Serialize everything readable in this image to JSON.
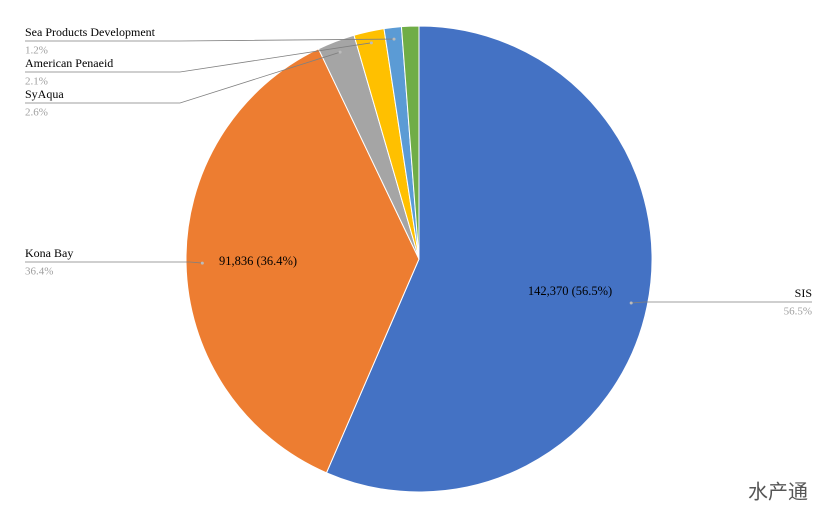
{
  "chart_data": {
    "type": "pie",
    "categories": [
      "SIS",
      "Kona Bay",
      "SyAqua",
      "American Penaeid",
      "Sea Products Development",
      null
    ],
    "values": [
      56.5,
      36.4,
      2.6,
      2.1,
      1.2,
      1.2
    ],
    "value_labels": [
      "56.5%",
      "36.4%",
      "2.6%",
      "2.1%",
      "1.2%",
      null
    ],
    "inner_labels": [
      "142,370 (56.5%)",
      "91,836 (36.4%)",
      null,
      null,
      null,
      null
    ],
    "colors": [
      "#4472c4",
      "#ed7d31",
      "#a5a5a5",
      "#ffc000",
      "#5b9bd5",
      "#70ad47"
    ],
    "watermark": "水产通"
  }
}
